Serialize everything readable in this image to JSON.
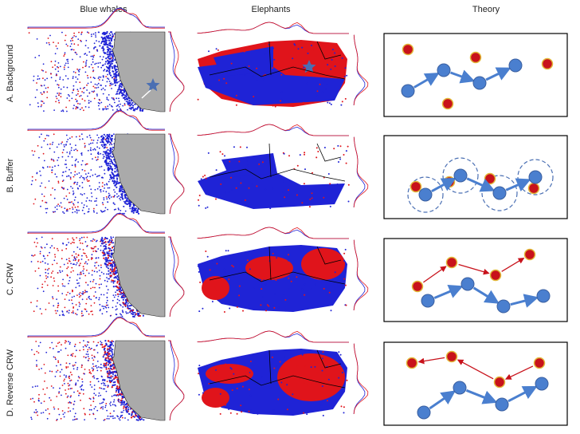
{
  "columns": {
    "blue_whales": "Blue whales",
    "elephants": "Elephants",
    "theory": "Theory"
  },
  "rows": [
    {
      "label": "A. Background"
    },
    {
      "label": "B. Buffer"
    },
    {
      "label": "C. CRW"
    },
    {
      "label": "D. Reverse CRW"
    }
  ],
  "colors": {
    "blue": "#1f23d6",
    "red": "#e0141b",
    "land": "#aaaaaa",
    "theory_blue": "#4a7fcf",
    "theory_red": "#c8121b",
    "theory_red_ring": "#e2b93a"
  }
}
